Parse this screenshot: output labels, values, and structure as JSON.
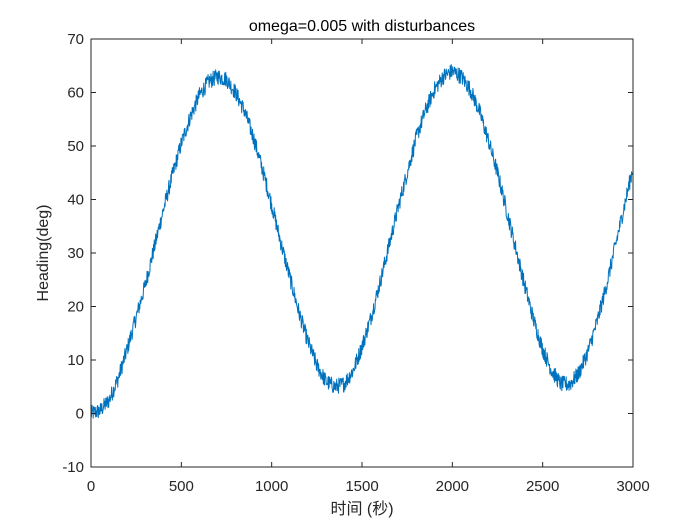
{
  "chart_data": {
    "type": "line",
    "title": "omega=0.005 with disturbances",
    "xlabel": "时间 (秒)",
    "ylabel": "Heading(deg)",
    "xlim": [
      0,
      3000
    ],
    "ylim": [
      -10,
      70
    ],
    "xticks": [
      0,
      500,
      1000,
      1500,
      2000,
      2500,
      3000
    ],
    "yticks": [
      -10,
      0,
      10,
      20,
      30,
      40,
      50,
      60,
      70
    ],
    "grid": false,
    "legend": "none",
    "series_color": "#0072BD",
    "series": [
      {
        "x": [
          0,
          50,
          100,
          150,
          200,
          250,
          300,
          350,
          400,
          450,
          500,
          550,
          600,
          650,
          700,
          750,
          800,
          850,
          900,
          950,
          1000,
          1050,
          1100,
          1150,
          1200,
          1250,
          1300,
          1350,
          1400,
          1450,
          1500,
          1550,
          1600,
          1650,
          1700,
          1750,
          1800,
          1850,
          1900,
          1950,
          2000,
          2050,
          2100,
          2150,
          2200,
          2250,
          2300,
          2350,
          2400,
          2450,
          2500,
          2550,
          2600,
          2650,
          2700,
          2750,
          2800,
          2850,
          2900,
          2950,
          3000
        ],
        "values": [
          0.0,
          0.5,
          2.5,
          6.5,
          12.0,
          18.0,
          24.0,
          31.0,
          38.0,
          44.5,
          50.5,
          55.5,
          59.5,
          62.0,
          63.0,
          62.5,
          60.0,
          56.5,
          51.5,
          45.5,
          39.0,
          32.0,
          25.5,
          19.0,
          13.5,
          9.0,
          6.0,
          5.0,
          5.5,
          8.0,
          12.5,
          18.0,
          24.5,
          31.5,
          38.5,
          45.0,
          51.5,
          56.5,
          60.5,
          63.0,
          64.0,
          63.0,
          60.5,
          56.5,
          51.0,
          45.0,
          38.0,
          31.0,
          24.0,
          17.5,
          12.0,
          8.0,
          5.5,
          5.5,
          7.5,
          11.5,
          17.0,
          23.5,
          31.0,
          38.5,
          46.0
        ],
        "noise_amplitude": 1.5
      }
    ]
  }
}
